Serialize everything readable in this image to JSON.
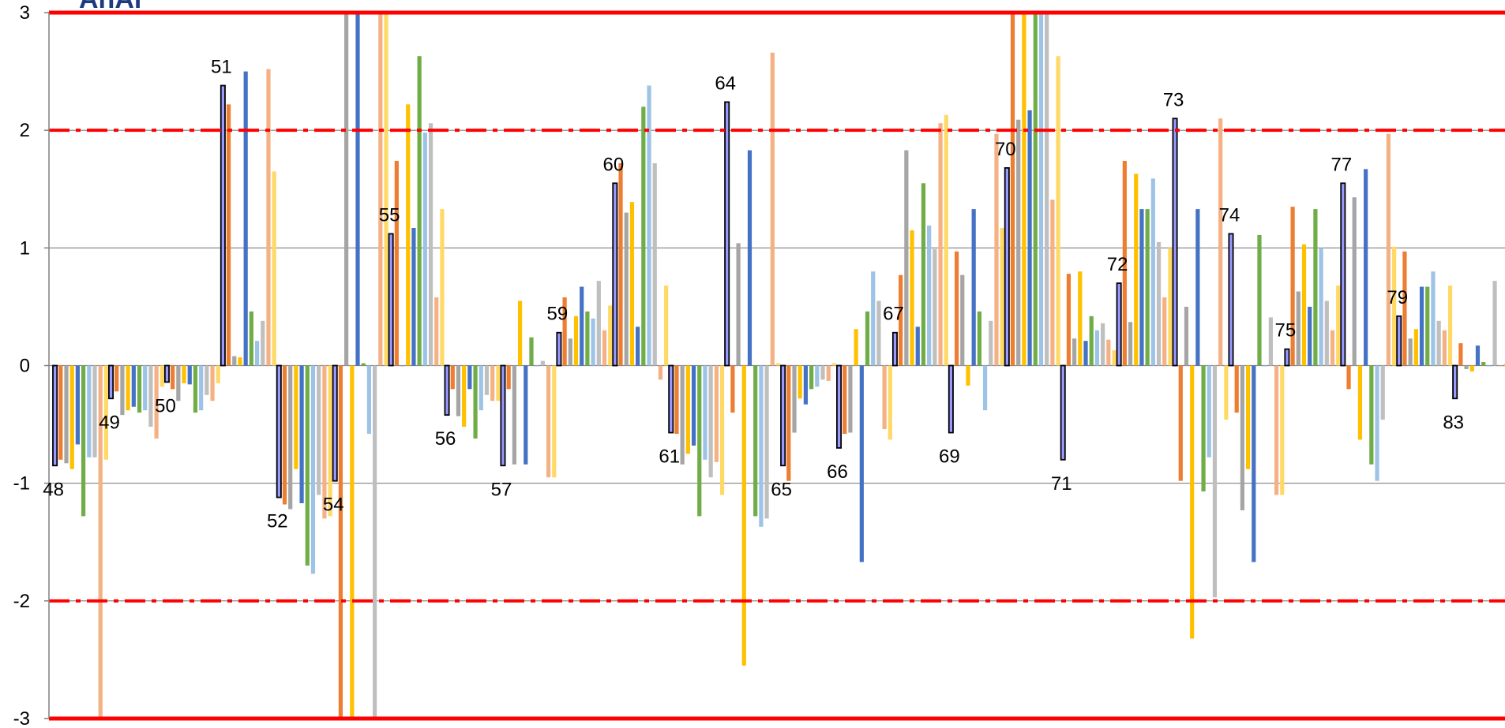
{
  "logo_text": "AnAr",
  "chart_data": {
    "type": "bar",
    "ylim": [
      -3,
      3
    ],
    "y_ticks": [
      "3",
      "2",
      "1",
      "0",
      "-1",
      "-2",
      "-3"
    ],
    "gridlines": [
      2,
      1,
      0,
      -1,
      -2
    ],
    "reference_lines": [
      {
        "y": 3,
        "style": "solid",
        "color": "#ff0000"
      },
      {
        "y": 2,
        "style": "dashdot",
        "color": "#ff0000"
      },
      {
        "y": -2,
        "style": "dashdot",
        "color": "#ff0000"
      },
      {
        "y": -3,
        "style": "solid",
        "color": "#ff0000"
      }
    ],
    "highlight_series_color": "#9999ff",
    "series_colors": [
      "#9999ff",
      "#ed7d31",
      "#a5a5a5",
      "#ffc000",
      "#4472c4",
      "#70ad47",
      "#9dc3e6",
      "#bfbfbf",
      "#f4b183",
      "#ffd966"
    ],
    "groups": [
      {
        "label": "48",
        "values": [
          -0.85,
          -0.8,
          -0.83,
          -0.88,
          -0.67,
          -1.28,
          -0.78,
          -0.78,
          -3.0,
          -0.8
        ]
      },
      {
        "label": "49",
        "values": [
          -0.28,
          -0.22,
          -0.42,
          -0.38,
          -0.35,
          -0.4,
          -0.38,
          -0.52,
          -0.62,
          -0.18
        ]
      },
      {
        "label": "50",
        "values": [
          -0.14,
          -0.2,
          -0.3,
          -0.15,
          -0.16,
          -0.4,
          -0.38,
          -0.25,
          -0.3,
          -0.15
        ]
      },
      {
        "label": "51",
        "values": [
          2.38,
          2.22,
          0.08,
          0.07,
          2.5,
          0.46,
          0.21,
          0.38,
          2.52,
          1.65
        ]
      },
      {
        "label": "52",
        "values": [
          -1.12,
          -1.18,
          -1.22,
          -0.88,
          -1.17,
          -1.7,
          -1.77,
          -1.1,
          -1.3,
          -1.28
        ]
      },
      {
        "label": "54",
        "values": [
          -0.98,
          -3.0,
          3.0,
          -3.0,
          3.0,
          0.02,
          -0.58,
          -3.0,
          3.0,
          3.0
        ]
      },
      {
        "label": "55",
        "values": [
          1.12,
          1.74,
          0.0,
          2.22,
          1.17,
          2.63,
          1.98,
          2.06,
          0.58,
          1.33
        ]
      },
      {
        "label": "56",
        "values": [
          -0.42,
          -0.2,
          -0.43,
          -0.52,
          -0.2,
          -0.62,
          -0.38,
          -0.25,
          -0.3,
          -0.3
        ]
      },
      {
        "label": "57",
        "values": [
          -0.85,
          -0.2,
          -0.84,
          0.55,
          -0.84,
          0.24,
          0.0,
          0.04,
          -0.95,
          -0.95
        ]
      },
      {
        "label": "59",
        "values": [
          0.28,
          0.58,
          0.23,
          0.42,
          0.67,
          0.46,
          0.4,
          0.72,
          0.3,
          0.51
        ]
      },
      {
        "label": "60",
        "values": [
          1.55,
          1.72,
          1.3,
          1.39,
          0.33,
          2.2,
          2.38,
          1.72,
          -0.12,
          0.68
        ]
      },
      {
        "label": "61",
        "values": [
          -0.57,
          -0.58,
          -0.84,
          -0.75,
          -0.68,
          -1.28,
          -0.8,
          -0.95,
          -0.82,
          -1.1
        ]
      },
      {
        "label": "64",
        "values": [
          2.24,
          -0.4,
          1.04,
          -2.55,
          1.83,
          -1.28,
          -1.37,
          -1.3,
          2.66,
          0.02
        ]
      },
      {
        "label": "65",
        "values": [
          -0.85,
          -0.98,
          -0.57,
          -0.28,
          -0.33,
          -0.2,
          -0.18,
          -0.12,
          -0.13,
          0.02
        ]
      },
      {
        "label": "66",
        "values": [
          -0.7,
          -0.58,
          -0.57,
          0.31,
          -1.67,
          0.46,
          0.8,
          0.55,
          -0.54,
          -0.63
        ]
      },
      {
        "label": "67",
        "values": [
          0.28,
          0.77,
          1.83,
          1.15,
          0.33,
          1.55,
          1.19,
          0.99,
          2.06,
          2.13
        ]
      },
      {
        "label": "69",
        "values": [
          -0.57,
          0.97,
          0.77,
          -0.17,
          1.33,
          0.46,
          -0.38,
          0.38,
          1.97,
          1.17
        ]
      },
      {
        "label": "70",
        "values": [
          1.68,
          3.0,
          2.09,
          3.0,
          2.17,
          3.0,
          3.0,
          3.0,
          1.41,
          2.63
        ]
      },
      {
        "label": "71",
        "values": [
          -0.8,
          0.78,
          0.23,
          0.8,
          0.21,
          0.42,
          0.3,
          0.36,
          0.22,
          0.13
        ]
      },
      {
        "label": "72",
        "values": [
          0.7,
          1.74,
          0.37,
          1.63,
          1.33,
          1.33,
          1.59,
          1.05,
          0.58,
          1.0
        ]
      },
      {
        "label": "73",
        "values": [
          2.1,
          -0.98,
          0.5,
          -2.32,
          1.33,
          -1.07,
          -0.78,
          -1.97,
          2.1,
          -0.46
        ]
      },
      {
        "label": "74",
        "values": [
          1.12,
          -0.4,
          -1.23,
          -0.88,
          -1.67,
          1.11,
          0.0,
          0.41,
          -1.1,
          -1.1
        ]
      },
      {
        "label": "75",
        "values": [
          0.14,
          1.35,
          0.63,
          1.03,
          0.5,
          1.33,
          1.0,
          0.55,
          0.3,
          0.68
        ]
      },
      {
        "label": "77",
        "values": [
          1.55,
          -0.2,
          1.43,
          -0.63,
          1.67,
          -0.84,
          -0.98,
          -0.46,
          1.97,
          1.01
        ]
      },
      {
        "label": "79",
        "values": [
          0.42,
          0.97,
          0.23,
          0.31,
          0.67,
          0.67,
          0.8,
          0.38,
          0.3,
          0.68
        ]
      },
      {
        "label": "83",
        "values": [
          -0.28,
          0.19,
          -0.03,
          -0.05,
          0.17,
          0.03,
          0.0,
          0.72,
          0.0,
          0.02
        ]
      }
    ]
  }
}
